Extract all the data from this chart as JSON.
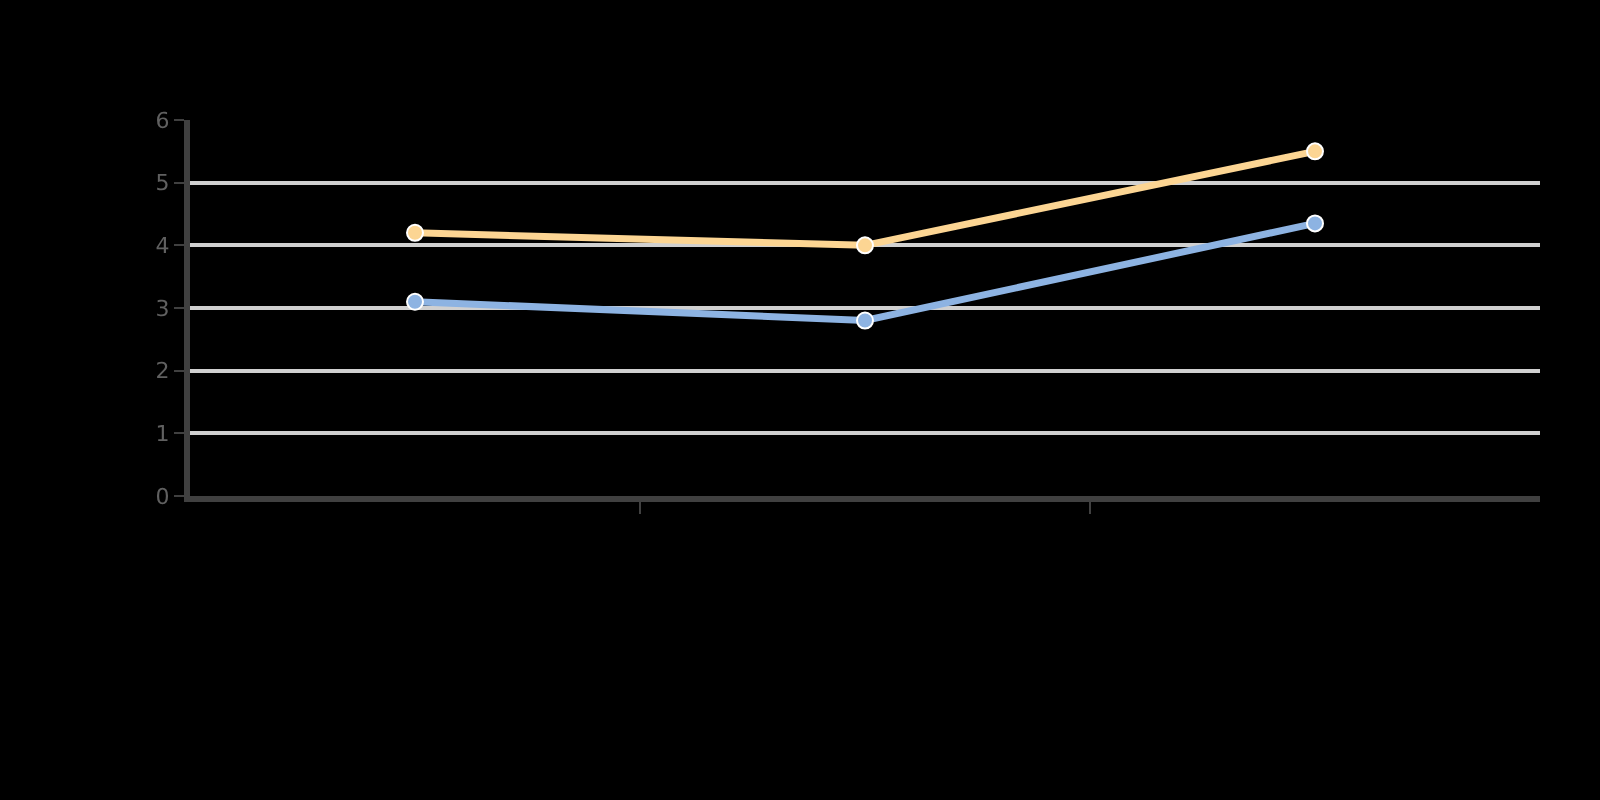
{
  "chart_data": {
    "type": "line",
    "categories": [
      null,
      null,
      null
    ],
    "series": [
      {
        "color": "#8db3e2",
        "values": [
          3.1,
          2.8,
          4.35
        ]
      },
      {
        "color": "#fcd593",
        "values": [
          4.2,
          4.0,
          5.5
        ]
      }
    ],
    "ylim": [
      0,
      6
    ],
    "yticks": [
      0,
      1,
      2,
      3,
      4,
      5,
      6
    ],
    "grid": "y",
    "marker": "circle",
    "line_style": "solid",
    "tick_labels": "y"
  }
}
